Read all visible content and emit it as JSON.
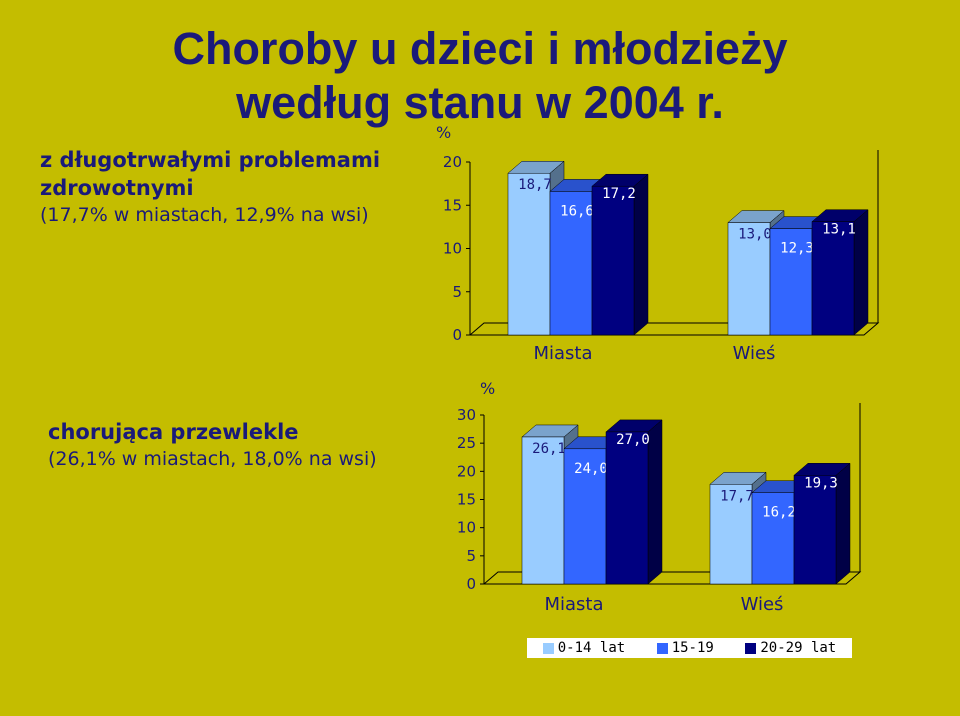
{
  "title": {
    "line1": "Choroby u dzieci i młodzieży",
    "line2": "według stanu w 2004 r."
  },
  "panels": [
    {
      "heading_line1": "z długotrwałymi problemami",
      "heading_line2": "zdrowotnymi",
      "subheading": "(17,7% w miastach, 12,9% na wsi)"
    },
    {
      "heading_line1": "chorująca przewlekle",
      "heading_line2": "",
      "subheading": "(26,1% w miastach, 18,0% na wsi)"
    }
  ],
  "legend": {
    "items": [
      {
        "label": "0-14 lat",
        "color": "#99ccff"
      },
      {
        "label": "15-19",
        "color": "#3366ff"
      },
      {
        "label": "20-29 lat",
        "color": "#000080"
      }
    ]
  },
  "chart_data": [
    {
      "type": "bar",
      "ylabel": "%",
      "categories": [
        "Miasta",
        "Wieś"
      ],
      "series": [
        {
          "name": "0-14 lat",
          "values": [
            18.7,
            13.0
          ],
          "labels": [
            "18,7",
            "13,0"
          ],
          "color": "#99ccff"
        },
        {
          "name": "15-19",
          "values": [
            16.6,
            12.3
          ],
          "labels": [
            "16,6",
            "12,3"
          ],
          "color": "#3366ff"
        },
        {
          "name": "20-29 lat",
          "values": [
            17.2,
            13.1
          ],
          "labels": [
            "17,2",
            "13,1"
          ],
          "color": "#000080"
        }
      ],
      "ylim": [
        0,
        20
      ],
      "yticks": [
        "0",
        "5",
        "10",
        "15",
        "20"
      ],
      "grid": false,
      "legend": "bottom"
    },
    {
      "type": "bar",
      "ylabel": "%",
      "categories": [
        "Miasta",
        "Wieś"
      ],
      "series": [
        {
          "name": "0-14 lat",
          "values": [
            26.1,
            17.7
          ],
          "labels": [
            "26,1",
            "17,7"
          ],
          "color": "#99ccff"
        },
        {
          "name": "15-19",
          "values": [
            24.0,
            16.2
          ],
          "labels": [
            "24,0",
            "16,2"
          ],
          "color": "#3366ff"
        },
        {
          "name": "20-29 lat",
          "values": [
            27.0,
            19.3
          ],
          "labels": [
            "27,0",
            "19,3"
          ],
          "color": "#000080"
        }
      ],
      "ylim": [
        0,
        30
      ],
      "yticks": [
        "0",
        "5",
        "10",
        "15",
        "20",
        "25",
        "30"
      ],
      "grid": false,
      "legend": "bottom"
    }
  ]
}
